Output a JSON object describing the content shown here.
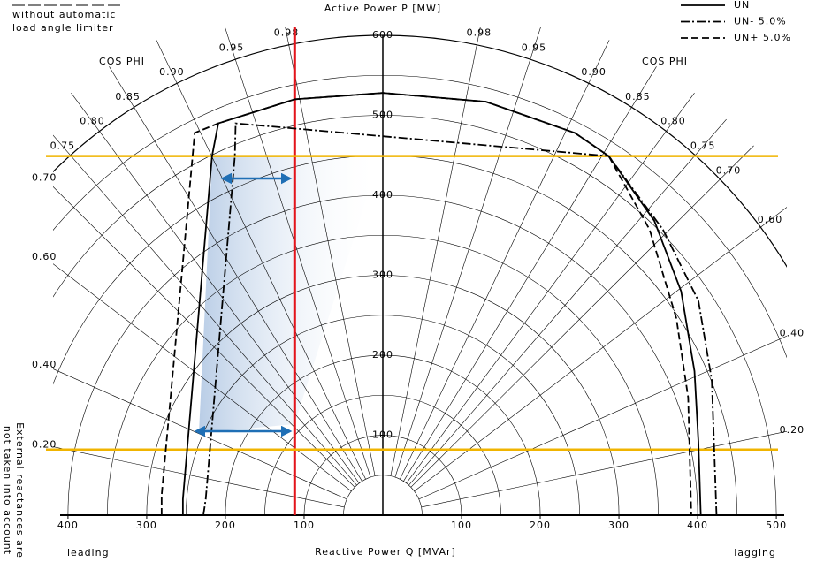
{
  "chart_data": {
    "type": "capability",
    "y_label": "Active Power P [MW]",
    "x_label": "Reactive Power Q [MVAr]",
    "note": [
      "without automatic",
      "load angle limiter"
    ],
    "side_note": [
      "External reactances are",
      "not taken into account"
    ],
    "cos_phi_label": "COS PHI",
    "left_label": "leading",
    "right_label": "lagging",
    "xlim": [
      -410,
      510
    ],
    "ylim": [
      0,
      600
    ],
    "xticks": [
      {
        "value": -400,
        "label": "400"
      },
      {
        "value": -300,
        "label": "300"
      },
      {
        "value": -200,
        "label": "200"
      },
      {
        "value": -100,
        "label": "100"
      },
      100,
      200,
      300,
      400,
      500
    ],
    "yticks": [
      100,
      200,
      300,
      400,
      500,
      600
    ],
    "circles": [
      50,
      100,
      150,
      200,
      250,
      300,
      350,
      400,
      450,
      500,
      550,
      600
    ],
    "pf_lines": {
      "leading": [
        0.98,
        0.95,
        {
          "value": 0.9,
          "label": "0.90"
        },
        0.85,
        {
          "value": 0.8,
          "label": "0.80"
        },
        0.75,
        {
          "value": 0.7,
          "label": "0.70"
        },
        {
          "value": 0.6,
          "label": "0.60"
        },
        {
          "value": 0.4,
          "label": "0.40"
        },
        {
          "value": 0.2,
          "label": "0.20"
        }
      ],
      "lagging": [
        0.98,
        0.95,
        {
          "value": 0.9,
          "label": "0.90"
        },
        0.85,
        {
          "value": 0.8,
          "label": "0.80"
        },
        0.75,
        {
          "value": 0.7,
          "label": "0.70"
        },
        {
          "value": 0.6,
          "label": "0.60"
        },
        {
          "value": 0.4,
          "label": "0.40"
        },
        {
          "value": 0.2,
          "label": "0.20"
        }
      ]
    },
    "series": [
      {
        "name": "UN",
        "color": "#000000",
        "dash": "solid",
        "x": [
          -254,
          -254,
          -217,
          -209,
          -112,
          0,
          131,
          244,
          287,
          345,
          379,
          396,
          401,
          404
        ],
        "y": [
          0,
          20,
          449,
          490,
          520,
          528,
          517,
          478,
          449,
          368,
          280,
          180,
          92,
          0
        ]
      },
      {
        "name": "UN- 5.0%",
        "color": "#000000",
        "dash": "dashdot",
        "x": [
          -228,
          -225,
          -188,
          -187,
          287,
          356,
          401,
          418,
          424
        ],
        "y": [
          0,
          20,
          449,
          490,
          449,
          357,
          268,
          169,
          0
        ]
      },
      {
        "name": "UN+ 5.0%",
        "color": "#000000",
        "dash": "dashed",
        "x": [
          -281,
          -281,
          -239,
          -209,
          -112,
          0,
          131,
          244,
          287,
          339,
          373,
          388,
          392
        ],
        "y": [
          0,
          25,
          478,
          490,
          520,
          528,
          517,
          478,
          449,
          357,
          246,
          147,
          0
        ]
      }
    ],
    "vertical_line": {
      "x": -112,
      "color": "#e3141b"
    },
    "horizontal_lines": {
      "values": [
        449,
        82
      ],
      "color": "#f0b400"
    }
  }
}
